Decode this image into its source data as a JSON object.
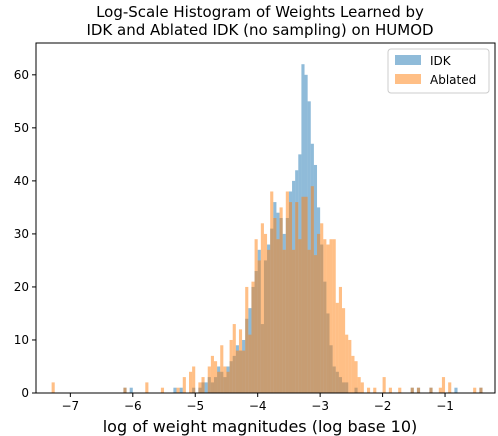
{
  "chart_data": {
    "type": "histogram",
    "title_line1": "Log-Scale Histogram of Weights Learned by",
    "title_line2": "IDK and Ablated IDK (no sampling) on HUMOD",
    "xlabel": "log of weight magnitudes (log base 10)",
    "ylabel": "",
    "xlim": [
      -7.55,
      -0.2
    ],
    "ylim": [
      0,
      66
    ],
    "xticks": [
      -7,
      -6,
      -5,
      -4,
      -3,
      -2,
      -1
    ],
    "yticks": [
      0,
      10,
      20,
      30,
      40,
      50,
      60
    ],
    "legend_position": "top-right",
    "grid": false,
    "bin_width": 0.05,
    "series": [
      {
        "name": "IDK",
        "color": "#1f77b4",
        "opacity": 0.5,
        "bins": [
          [
            -6.15,
            1
          ],
          [
            -6.05,
            1
          ],
          [
            -5.35,
            1
          ],
          [
            -5.25,
            1
          ],
          [
            -5.05,
            1
          ],
          [
            -4.95,
            1
          ],
          [
            -4.9,
            2
          ],
          [
            -4.85,
            2
          ],
          [
            -4.8,
            3
          ],
          [
            -4.75,
            2
          ],
          [
            -4.7,
            3
          ],
          [
            -4.65,
            5
          ],
          [
            -4.6,
            4
          ],
          [
            -4.55,
            3
          ],
          [
            -4.5,
            5
          ],
          [
            -4.45,
            6
          ],
          [
            -4.4,
            7
          ],
          [
            -4.35,
            9
          ],
          [
            -4.3,
            8
          ],
          [
            -4.25,
            10
          ],
          [
            -4.2,
            14
          ],
          [
            -4.15,
            16
          ],
          [
            -4.1,
            20
          ],
          [
            -4.05,
            23
          ],
          [
            -4.0,
            27
          ],
          [
            -3.95,
            13
          ],
          [
            -3.9,
            25
          ],
          [
            -3.85,
            28
          ],
          [
            -3.8,
            31
          ],
          [
            -3.75,
            36
          ],
          [
            -3.7,
            34
          ],
          [
            -3.65,
            33
          ],
          [
            -3.6,
            30
          ],
          [
            -3.55,
            33
          ],
          [
            -3.5,
            38
          ],
          [
            -3.45,
            40
          ],
          [
            -3.4,
            42
          ],
          [
            -3.35,
            45
          ],
          [
            -3.3,
            62
          ],
          [
            -3.25,
            60
          ],
          [
            -3.2,
            55
          ],
          [
            -3.15,
            47
          ],
          [
            -3.1,
            43
          ],
          [
            -3.05,
            35
          ],
          [
            -3.0,
            28
          ],
          [
            -2.95,
            21
          ],
          [
            -2.9,
            15
          ],
          [
            -2.85,
            9
          ],
          [
            -2.8,
            5
          ],
          [
            -2.75,
            4
          ],
          [
            -2.7,
            3
          ],
          [
            -2.65,
            2
          ],
          [
            -2.6,
            2
          ],
          [
            -2.45,
            1
          ],
          [
            -1.55,
            1
          ],
          [
            -1.45,
            1
          ],
          [
            -1.25,
            1
          ],
          [
            -0.85,
            1
          ],
          [
            -0.45,
            1
          ]
        ]
      },
      {
        "name": "Ablated",
        "color": "#ff7f0e",
        "opacity": 0.5,
        "bins": [
          [
            -7.3,
            2
          ],
          [
            -6.15,
            1
          ],
          [
            -5.8,
            2
          ],
          [
            -5.55,
            1
          ],
          [
            -5.3,
            1
          ],
          [
            -5.2,
            3
          ],
          [
            -5.1,
            4
          ],
          [
            -5.05,
            5
          ],
          [
            -4.95,
            2
          ],
          [
            -4.9,
            3
          ],
          [
            -4.8,
            5
          ],
          [
            -4.75,
            7
          ],
          [
            -4.7,
            6
          ],
          [
            -4.65,
            4
          ],
          [
            -4.6,
            9
          ],
          [
            -4.55,
            5
          ],
          [
            -4.5,
            4
          ],
          [
            -4.45,
            10
          ],
          [
            -4.4,
            13
          ],
          [
            -4.35,
            8
          ],
          [
            -4.3,
            12
          ],
          [
            -4.25,
            8
          ],
          [
            -4.2,
            20
          ],
          [
            -4.15,
            11
          ],
          [
            -4.1,
            21
          ],
          [
            -4.05,
            29
          ],
          [
            -4.0,
            25
          ],
          [
            -3.95,
            32
          ],
          [
            -3.9,
            30
          ],
          [
            -3.85,
            27
          ],
          [
            -3.8,
            38
          ],
          [
            -3.75,
            33
          ],
          [
            -3.7,
            29
          ],
          [
            -3.65,
            35
          ],
          [
            -3.6,
            27
          ],
          [
            -3.55,
            38
          ],
          [
            -3.5,
            36
          ],
          [
            -3.45,
            27
          ],
          [
            -3.4,
            36
          ],
          [
            -3.35,
            29
          ],
          [
            -3.3,
            37
          ],
          [
            -3.25,
            37
          ],
          [
            -3.2,
            27
          ],
          [
            -3.15,
            39
          ],
          [
            -3.1,
            26
          ],
          [
            -3.05,
            30
          ],
          [
            -3.0,
            32
          ],
          [
            -2.95,
            29
          ],
          [
            -2.9,
            28
          ],
          [
            -2.85,
            29
          ],
          [
            -2.8,
            29
          ],
          [
            -2.75,
            17
          ],
          [
            -2.7,
            20
          ],
          [
            -2.65,
            16
          ],
          [
            -2.6,
            11
          ],
          [
            -2.55,
            10
          ],
          [
            -2.5,
            7
          ],
          [
            -2.45,
            6
          ],
          [
            -2.4,
            3
          ],
          [
            -2.35,
            2
          ],
          [
            -2.25,
            1
          ],
          [
            -2.15,
            1
          ],
          [
            -2.0,
            3
          ],
          [
            -1.9,
            1
          ],
          [
            -1.75,
            1
          ],
          [
            -1.55,
            1
          ],
          [
            -1.45,
            1
          ],
          [
            -1.25,
            1
          ],
          [
            -1.1,
            1
          ],
          [
            -1.05,
            3
          ],
          [
            -0.95,
            2
          ],
          [
            -0.55,
            1
          ],
          [
            -0.45,
            1
          ]
        ]
      }
    ]
  }
}
